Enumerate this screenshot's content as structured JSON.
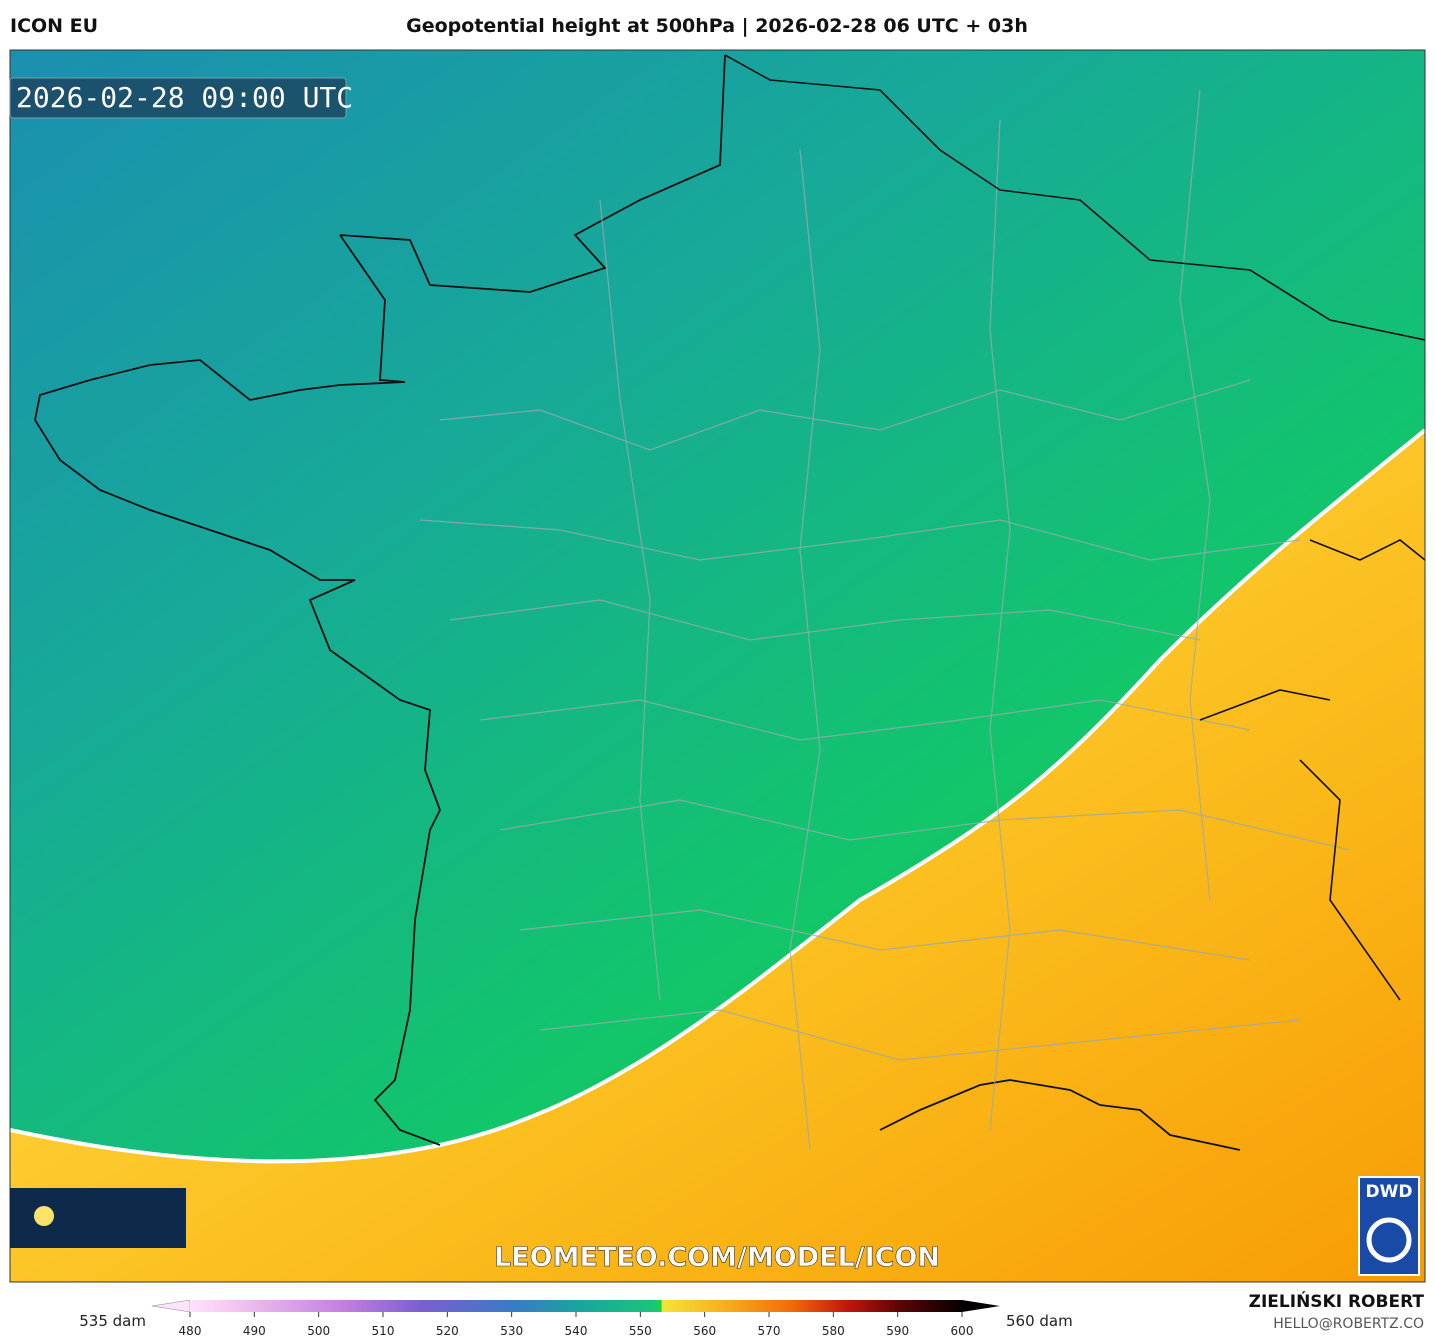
{
  "header": {
    "model": "ICON EU",
    "title": "Geopotential height at 500hPa | 2026-02-28 06 UTC + 03h"
  },
  "map": {
    "valid_time": "2026-02-28 09:00 UTC",
    "watermark": "LEOMETEO.COM/MODEL/ICON",
    "logo": "DWD"
  },
  "colorbar": {
    "left_label": "535 dam",
    "right_label": "560 dam",
    "ticks": [
      480,
      490,
      500,
      510,
      520,
      530,
      540,
      550,
      560,
      570,
      580,
      590,
      600
    ]
  },
  "footer": {
    "author": "ZIELIŃSKI ROBERT",
    "contact": "HELLO@ROBERTZ.CO"
  }
}
